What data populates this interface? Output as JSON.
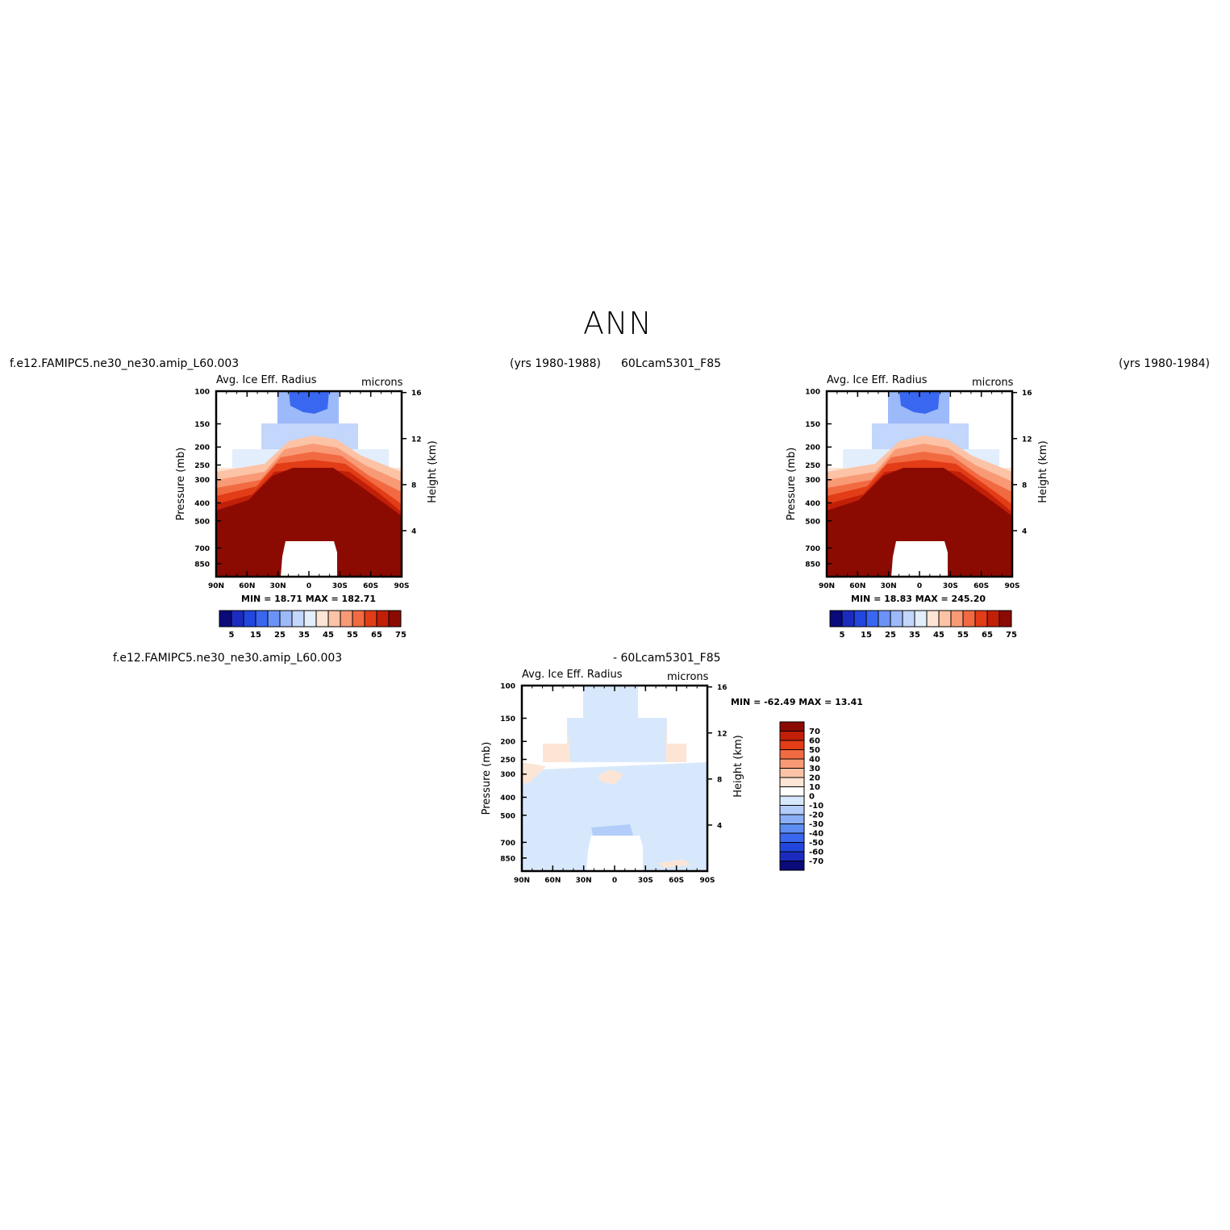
{
  "figure_title": "ANN",
  "panel1": {
    "case_label": "f.e12.FAMIPC5.ne30_ne30.amip_L60.003",
    "years_label": "(yrs 1980-1988)",
    "title": "Avg. Ice Eff. Radius",
    "units": "microns",
    "stats": "MIN =   18.71   MAX =  182.71"
  },
  "panel2": {
    "case_label": "60Lcam5301_F85",
    "years_label": "(yrs 1980-1984)",
    "title": "Avg. Ice Eff. Radius",
    "units": "microns",
    "stats": "MIN =   18.83   MAX =  245.20"
  },
  "panel3": {
    "case_label": "f.e12.FAMIPC5.ne30_ne30.amip_L60.003",
    "case_label_2": "- 60Lcam5301_F85",
    "title": "Avg. Ice Eff. Radius",
    "units": "microns",
    "stats": "MIN = -62.49   MAX =   13.41"
  },
  "axes": {
    "ylabel": "Pressure (mb)",
    "ylabel_right": "Height (km)",
    "pressure_ticks": [
      "100",
      "150",
      "200",
      "250",
      "300",
      "400",
      "500",
      "700",
      "850"
    ],
    "height_ticks": [
      "16",
      "12",
      "8",
      "4"
    ],
    "lat_ticks": [
      "90N",
      "60N",
      "30N",
      "0",
      "30S",
      "60S",
      "90S"
    ]
  },
  "colorbar_abs": {
    "labels": [
      "5",
      "15",
      "25",
      "35",
      "45",
      "55",
      "65",
      "75"
    ],
    "colors": [
      "#0a0a7a",
      "#1c2bbf",
      "#2247de",
      "#3a67f0",
      "#6b93f7",
      "#9cb9fa",
      "#c3d6fb",
      "#e2eefc",
      "#fde5d5",
      "#fcc3a6",
      "#f99a76",
      "#f26a42",
      "#e23d16",
      "#c21f08",
      "#8b0b02"
    ]
  },
  "colorbar_diff": {
    "labels": [
      "70",
      "60",
      "50",
      "40",
      "30",
      "20",
      "10",
      "0",
      "-10",
      "-20",
      "-30",
      "-40",
      "-50",
      "-60",
      "-70"
    ],
    "colors": [
      "#8b0b02",
      "#c21f08",
      "#e23d16",
      "#f26a42",
      "#f99a76",
      "#fcc3a6",
      "#fde5d5",
      "#ffffff",
      "#d8e8fc",
      "#b3cdfa",
      "#8aaff6",
      "#5e8ef2",
      "#3a67f0",
      "#2247de",
      "#1c2bbf",
      "#0a0a7a"
    ]
  },
  "chart_data": [
    {
      "type": "heatmap",
      "title": "Avg. Ice Eff. Radius",
      "units": "microns",
      "x": [
        "90N",
        "60N",
        "30N",
        "0",
        "30S",
        "60S",
        "90S"
      ],
      "ylabel": "Pressure (mb)",
      "y": [
        100,
        150,
        200,
        250,
        300,
        400,
        500,
        700,
        850
      ],
      "min": 18.71,
      "max": 182.71,
      "levels": [
        5,
        10,
        15,
        20,
        25,
        30,
        35,
        40,
        45,
        50,
        55,
        60,
        65,
        70,
        75
      ]
    },
    {
      "type": "heatmap",
      "title": "Avg. Ice Eff. Radius",
      "units": "microns",
      "x": [
        "90N",
        "60N",
        "30N",
        "0",
        "30S",
        "60S",
        "90S"
      ],
      "ylabel": "Pressure (mb)",
      "y": [
        100,
        150,
        200,
        250,
        300,
        400,
        500,
        700,
        850
      ],
      "min": 18.83,
      "max": 245.2,
      "levels": [
        5,
        10,
        15,
        20,
        25,
        30,
        35,
        40,
        45,
        50,
        55,
        60,
        65,
        70,
        75
      ]
    },
    {
      "type": "heatmap",
      "title": "Avg. Ice Eff. Radius",
      "units": "microns",
      "x": [
        "90N",
        "60N",
        "30N",
        "0",
        "30S",
        "60S",
        "90S"
      ],
      "ylabel": "Pressure (mb)",
      "y": [
        100,
        150,
        200,
        250,
        300,
        400,
        500,
        700,
        850
      ],
      "min": -62.49,
      "max": 13.41,
      "levels": [
        -70,
        -60,
        -50,
        -40,
        -30,
        -20,
        -10,
        0,
        10,
        20,
        30,
        40,
        50,
        60,
        70
      ]
    }
  ]
}
